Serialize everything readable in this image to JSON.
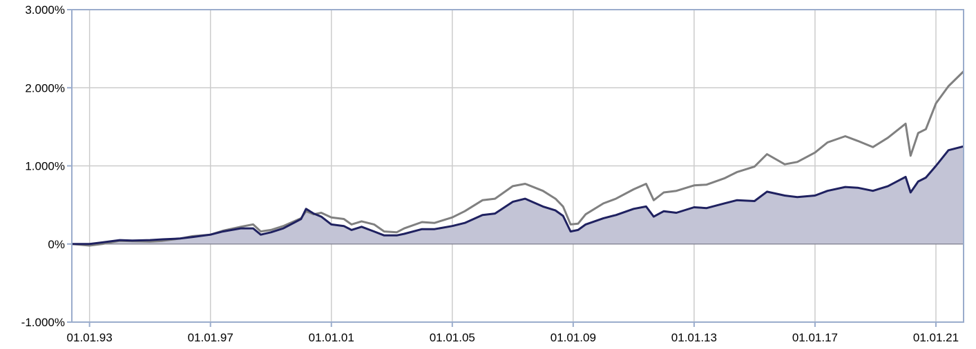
{
  "chart_data": {
    "type": "area",
    "title": "",
    "xlabel": "",
    "ylabel": "",
    "x_range": [
      "1992-06-01",
      "2021-12-01"
    ],
    "ylim": [
      -1000,
      3000
    ],
    "y_unit": "%",
    "y_ticks": [
      {
        "value": 3000,
        "label": "3.000%"
      },
      {
        "value": 2000,
        "label": "2.000%"
      },
      {
        "value": 1000,
        "label": "1.000%"
      },
      {
        "value": 0,
        "label": "0%"
      },
      {
        "value": -1000,
        "label": "-1.000%"
      }
    ],
    "x_ticks": [
      {
        "date": "1993-01-01",
        "label": "01.01.93"
      },
      {
        "date": "1997-01-01",
        "label": "01.01.97"
      },
      {
        "date": "2001-01-01",
        "label": "01.01.01"
      },
      {
        "date": "2005-01-01",
        "label": "01.01.05"
      },
      {
        "date": "2009-01-01",
        "label": "01.01.09"
      },
      {
        "date": "2013-01-01",
        "label": "01.01.13"
      },
      {
        "date": "2017-01-01",
        "label": "01.01.17"
      },
      {
        "date": "2021-01-01",
        "label": "01.01.21"
      }
    ],
    "grid": true,
    "legend": "none",
    "colors": {
      "series_navy": "#1f2160",
      "series_gray": "#808080",
      "area_fill": "#c3c4d6",
      "grid": "#cccccc",
      "axis": "#9aaccc"
    },
    "series": [
      {
        "style": "gray-line",
        "points": [
          [
            "1992-06-01",
            0
          ],
          [
            "1993-01-01",
            -20
          ],
          [
            "1993-06-01",
            0
          ],
          [
            "1994-01-01",
            40
          ],
          [
            "1994-06-01",
            35
          ],
          [
            "1995-01-01",
            30
          ],
          [
            "1995-06-01",
            40
          ],
          [
            "1996-01-01",
            70
          ],
          [
            "1996-06-01",
            100
          ],
          [
            "1997-01-01",
            120
          ],
          [
            "1997-06-01",
            170
          ],
          [
            "1998-01-01",
            220
          ],
          [
            "1998-06-01",
            250
          ],
          [
            "1998-09-01",
            160
          ],
          [
            "1999-01-01",
            180
          ],
          [
            "1999-06-01",
            230
          ],
          [
            "2000-01-01",
            330
          ],
          [
            "2000-03-01",
            420
          ],
          [
            "2000-06-01",
            380
          ],
          [
            "2000-09-01",
            400
          ],
          [
            "2001-01-01",
            340
          ],
          [
            "2001-06-01",
            320
          ],
          [
            "2001-09-01",
            250
          ],
          [
            "2002-01-01",
            290
          ],
          [
            "2002-06-01",
            250
          ],
          [
            "2002-10-01",
            160
          ],
          [
            "2003-03-01",
            150
          ],
          [
            "2003-06-01",
            200
          ],
          [
            "2004-01-01",
            280
          ],
          [
            "2004-06-01",
            270
          ],
          [
            "2005-01-01",
            340
          ],
          [
            "2005-06-01",
            420
          ],
          [
            "2006-01-01",
            560
          ],
          [
            "2006-06-01",
            580
          ],
          [
            "2007-01-01",
            740
          ],
          [
            "2007-06-01",
            770
          ],
          [
            "2008-01-01",
            680
          ],
          [
            "2008-06-01",
            580
          ],
          [
            "2008-09-01",
            480
          ],
          [
            "2008-12-01",
            250
          ],
          [
            "2009-03-01",
            260
          ],
          [
            "2009-06-01",
            380
          ],
          [
            "2010-01-01",
            520
          ],
          [
            "2010-06-01",
            580
          ],
          [
            "2011-01-01",
            700
          ],
          [
            "2011-06-01",
            770
          ],
          [
            "2011-09-01",
            560
          ],
          [
            "2012-01-01",
            660
          ],
          [
            "2012-06-01",
            680
          ],
          [
            "2013-01-01",
            750
          ],
          [
            "2013-06-01",
            760
          ],
          [
            "2014-01-01",
            840
          ],
          [
            "2014-06-01",
            920
          ],
          [
            "2015-01-01",
            990
          ],
          [
            "2015-06-01",
            1150
          ],
          [
            "2016-01-01",
            1020
          ],
          [
            "2016-06-01",
            1050
          ],
          [
            "2017-01-01",
            1170
          ],
          [
            "2017-06-01",
            1300
          ],
          [
            "2018-01-01",
            1380
          ],
          [
            "2018-06-01",
            1320
          ],
          [
            "2018-12-01",
            1240
          ],
          [
            "2019-06-01",
            1360
          ],
          [
            "2020-01-01",
            1540
          ],
          [
            "2020-03-01",
            1130
          ],
          [
            "2020-06-01",
            1420
          ],
          [
            "2020-09-01",
            1470
          ],
          [
            "2021-01-01",
            1800
          ],
          [
            "2021-06-01",
            2020
          ],
          [
            "2021-12-01",
            2210
          ]
        ]
      },
      {
        "style": "navy-line-with-area",
        "points": [
          [
            "1992-06-01",
            0
          ],
          [
            "1993-01-01",
            0
          ],
          [
            "1993-06-01",
            20
          ],
          [
            "1994-01-01",
            50
          ],
          [
            "1994-06-01",
            45
          ],
          [
            "1995-01-01",
            50
          ],
          [
            "1995-06-01",
            60
          ],
          [
            "1996-01-01",
            70
          ],
          [
            "1996-06-01",
            90
          ],
          [
            "1997-01-01",
            120
          ],
          [
            "1997-06-01",
            160
          ],
          [
            "1998-01-01",
            200
          ],
          [
            "1998-06-01",
            200
          ],
          [
            "1998-09-01",
            120
          ],
          [
            "1999-01-01",
            150
          ],
          [
            "1999-06-01",
            200
          ],
          [
            "2000-01-01",
            320
          ],
          [
            "2000-03-01",
            450
          ],
          [
            "2000-06-01",
            390
          ],
          [
            "2000-09-01",
            350
          ],
          [
            "2001-01-01",
            250
          ],
          [
            "2001-06-01",
            230
          ],
          [
            "2001-09-01",
            180
          ],
          [
            "2002-01-01",
            220
          ],
          [
            "2002-06-01",
            160
          ],
          [
            "2002-10-01",
            110
          ],
          [
            "2003-03-01",
            110
          ],
          [
            "2003-06-01",
            130
          ],
          [
            "2004-01-01",
            190
          ],
          [
            "2004-06-01",
            190
          ],
          [
            "2005-01-01",
            230
          ],
          [
            "2005-06-01",
            270
          ],
          [
            "2006-01-01",
            370
          ],
          [
            "2006-06-01",
            390
          ],
          [
            "2007-01-01",
            540
          ],
          [
            "2007-06-01",
            580
          ],
          [
            "2008-01-01",
            480
          ],
          [
            "2008-06-01",
            430
          ],
          [
            "2008-09-01",
            360
          ],
          [
            "2008-12-01",
            160
          ],
          [
            "2009-03-01",
            180
          ],
          [
            "2009-06-01",
            250
          ],
          [
            "2010-01-01",
            330
          ],
          [
            "2010-06-01",
            370
          ],
          [
            "2011-01-01",
            450
          ],
          [
            "2011-06-01",
            480
          ],
          [
            "2011-09-01",
            350
          ],
          [
            "2012-01-01",
            420
          ],
          [
            "2012-06-01",
            400
          ],
          [
            "2013-01-01",
            470
          ],
          [
            "2013-06-01",
            460
          ],
          [
            "2014-01-01",
            520
          ],
          [
            "2014-06-01",
            560
          ],
          [
            "2015-01-01",
            550
          ],
          [
            "2015-06-01",
            670
          ],
          [
            "2016-01-01",
            620
          ],
          [
            "2016-06-01",
            600
          ],
          [
            "2017-01-01",
            620
          ],
          [
            "2017-06-01",
            680
          ],
          [
            "2018-01-01",
            730
          ],
          [
            "2018-06-01",
            720
          ],
          [
            "2018-12-01",
            680
          ],
          [
            "2019-06-01",
            740
          ],
          [
            "2020-01-01",
            860
          ],
          [
            "2020-03-01",
            660
          ],
          [
            "2020-06-01",
            800
          ],
          [
            "2020-09-01",
            850
          ],
          [
            "2021-01-01",
            1000
          ],
          [
            "2021-06-01",
            1200
          ],
          [
            "2021-12-01",
            1250
          ]
        ]
      }
    ]
  }
}
